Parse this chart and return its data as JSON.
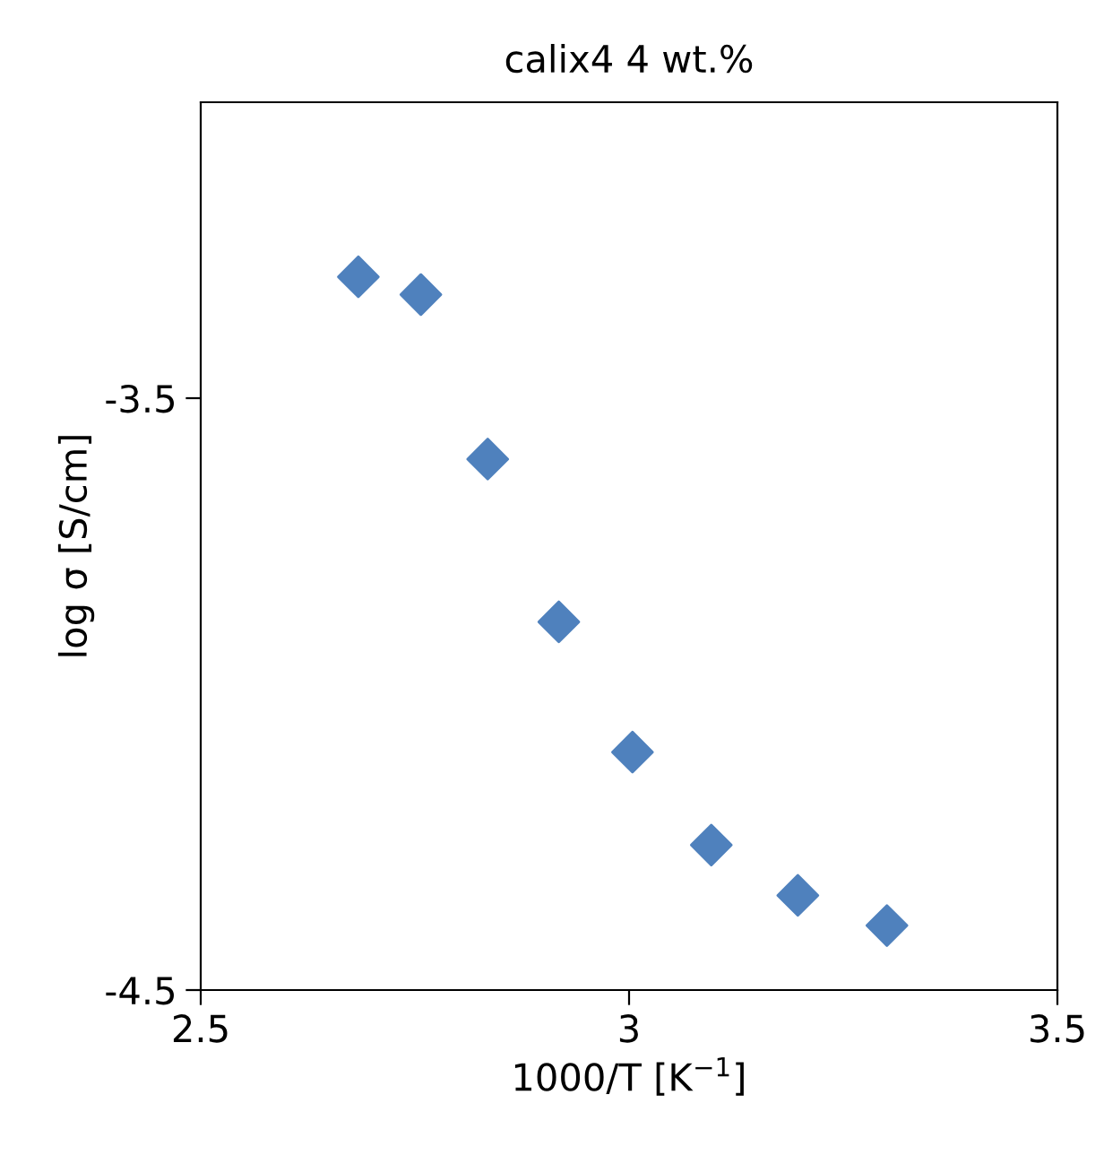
{
  "chart_data": {
    "type": "scatter",
    "title": "calix4 4 wt.%",
    "xlabel": "1000/T [K$^{−1}$]",
    "ylabel": "log σ [S/cm]",
    "x": [
      2.684,
      2.757,
      2.835,
      2.918,
      3.004,
      3.096,
      3.197,
      3.301
    ],
    "series": [
      {
        "color": "#4f81bd",
        "values": [
          -3.295,
          -3.325,
          -3.603,
          -3.878,
          -4.098,
          -4.255,
          -4.34,
          -4.391
        ]
      }
    ],
    "xlim": [
      2.5,
      3.5
    ],
    "xticks": [
      2.5,
      3,
      3.5
    ],
    "ylim": [
      -4.5,
      -3.0
    ],
    "yticks": [
      -4.5,
      -3.5
    ],
    "marker": "diamond",
    "grid": false,
    "legend": false
  }
}
